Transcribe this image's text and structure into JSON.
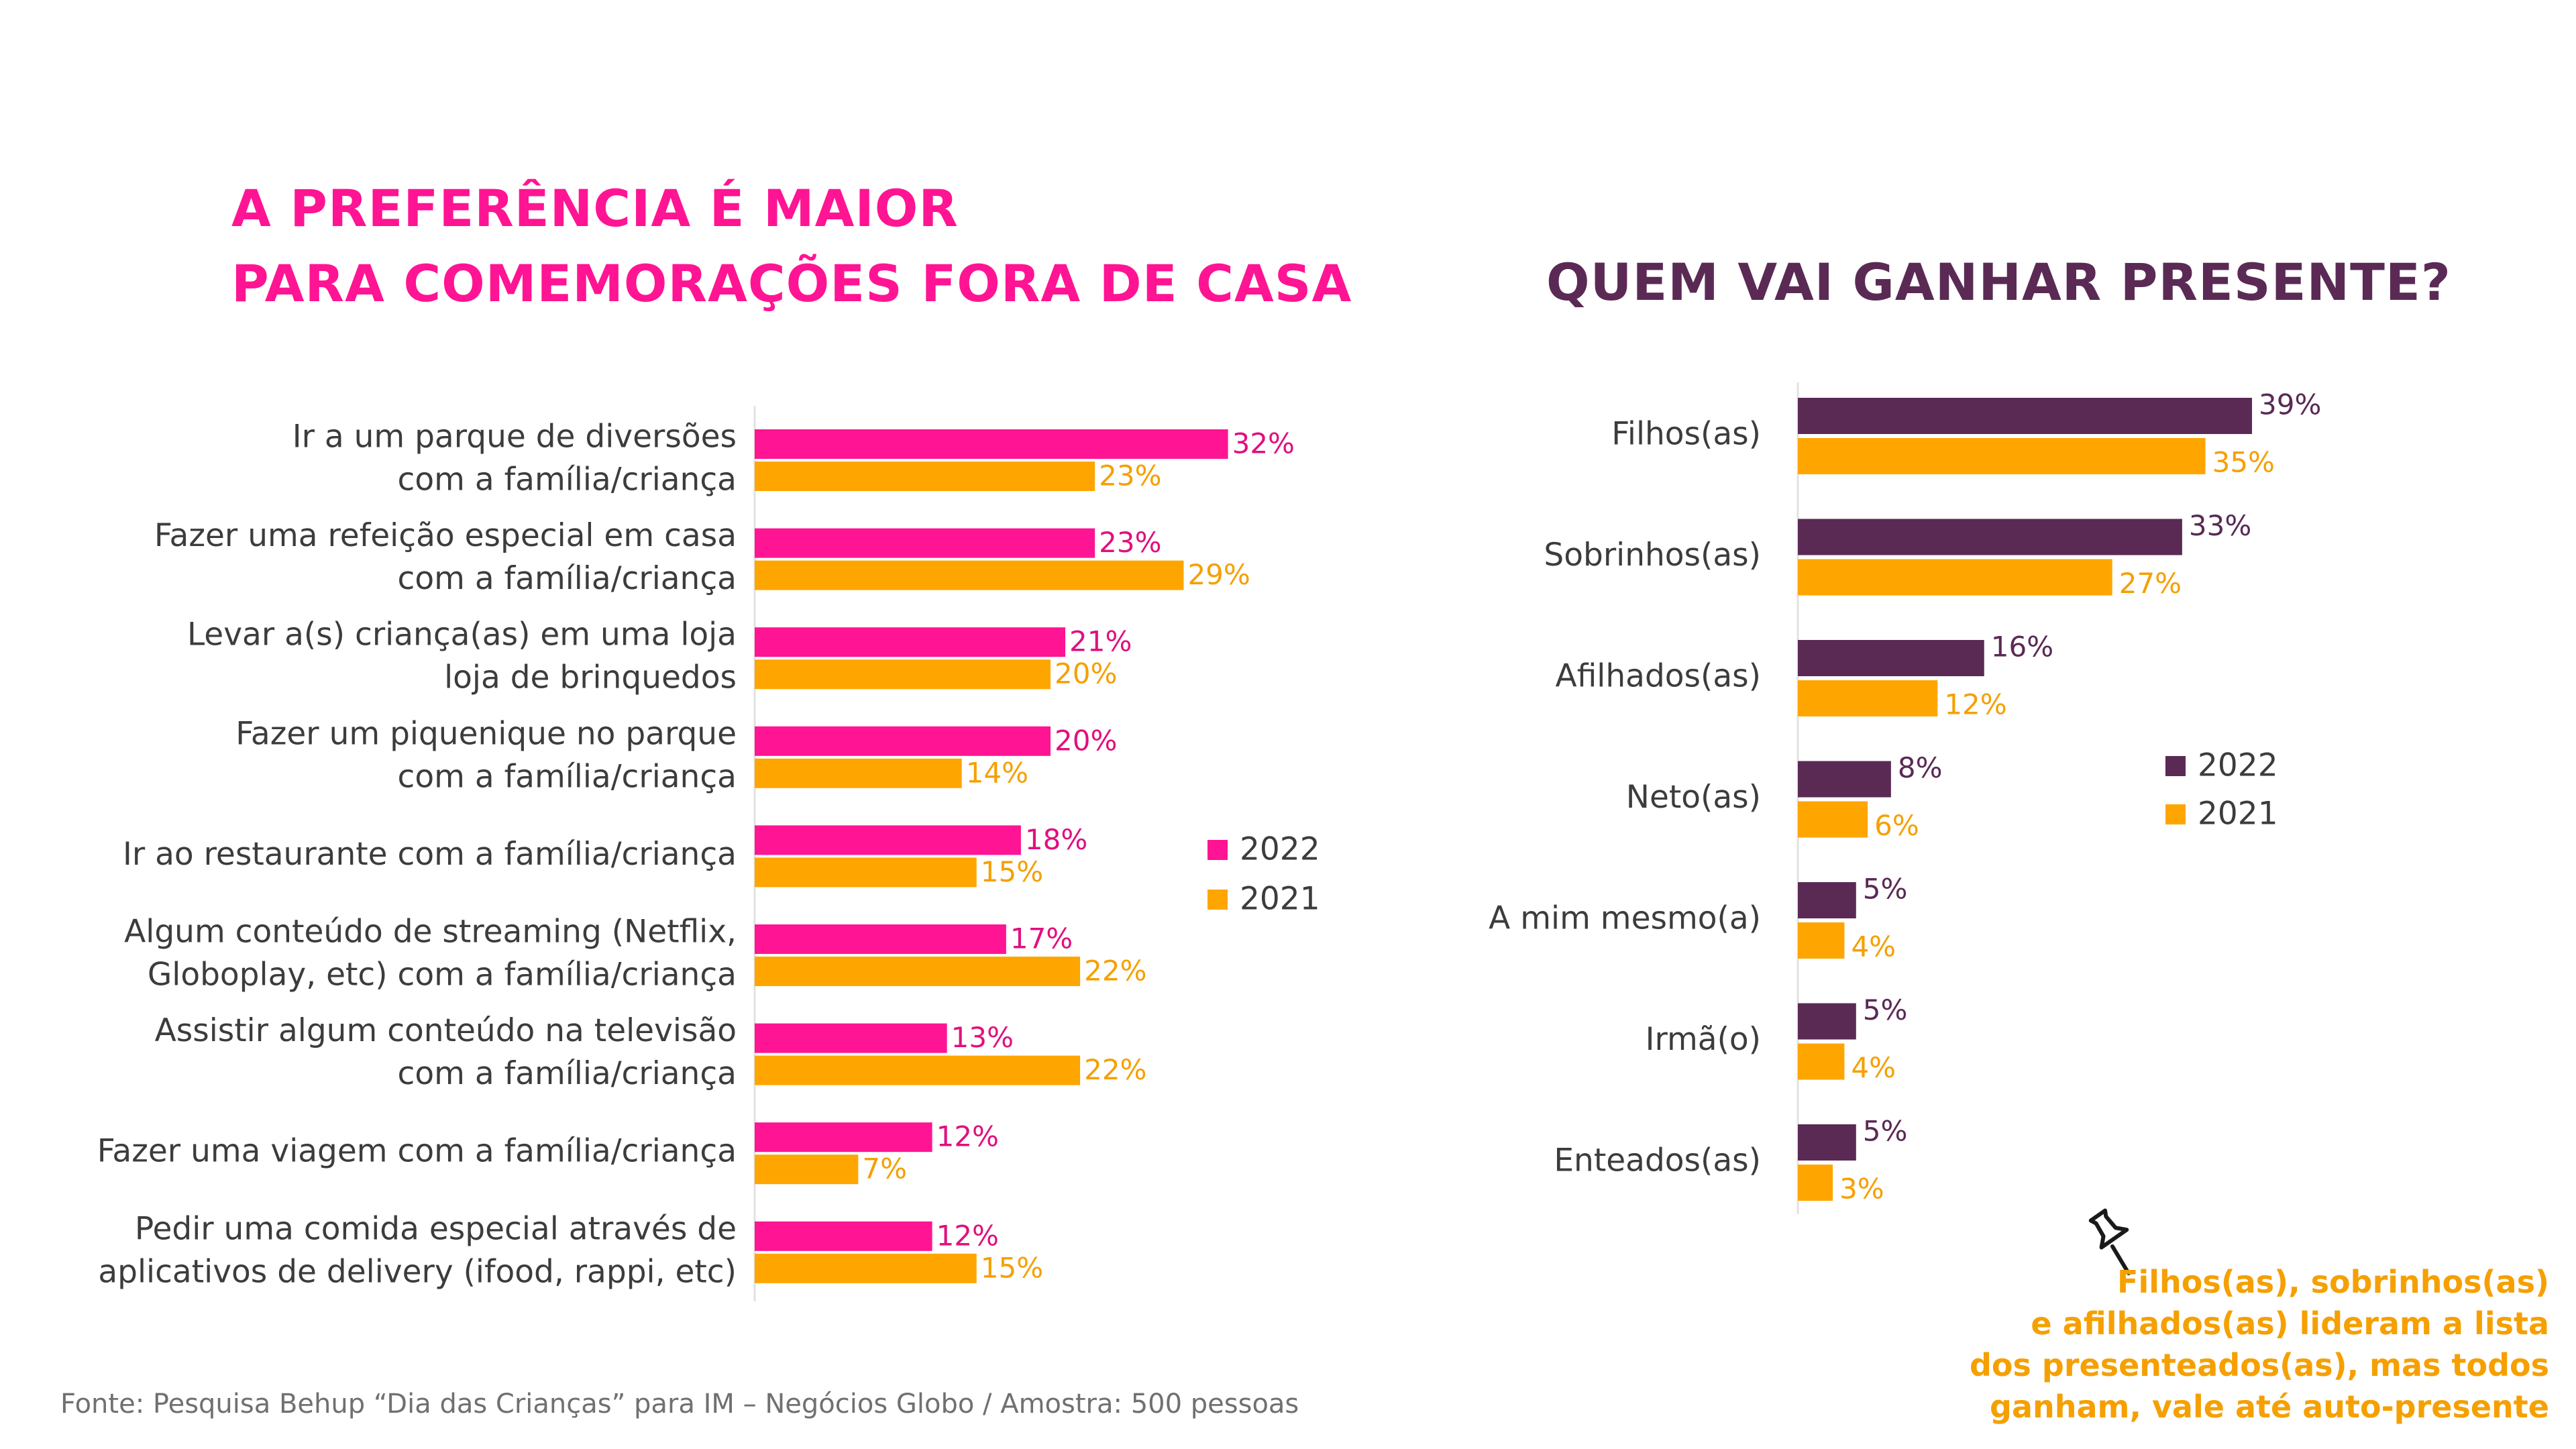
{
  "left_title": [
    "A PREFERÊNCIA É MAIOR",
    "PARA COMEMORAÇÕES FORA DE CASA"
  ],
  "right_title": "QUEM VAI GANHAR PRESENTE?",
  "source": "Fonte: Pesquisa Behup “Dia das Crianças” para  IM – Negócios Globo / Amostra: 500 pessoas",
  "note": [
    "Filhos(as), sobrinhos(as)",
    "e afilhados(as) lideram a lista",
    "dos presenteados(as), mas todos",
    "ganham, vale até auto-presente"
  ],
  "colors": {
    "left_2022": "#ff1493",
    "right_2022": "#5a2a55",
    "year_2021": "#ffa500",
    "left_label_2022": "#e0107f",
    "left_label_2021": "#f5a000",
    "right_label_2022": "#5a2a55",
    "right_label_2021": "#f5a000"
  },
  "icons": {
    "note_icon": "pushpin-icon"
  },
  "chart_data": [
    {
      "type": "bar",
      "orientation": "horizontal",
      "categories": [
        [
          "Ir a um parque de diversões",
          "com a família/criança"
        ],
        [
          "Fazer uma refeição especial em casa",
          "com a família/criança"
        ],
        [
          "Levar a(s) criança(as) em uma loja",
          "loja de brinquedos"
        ],
        [
          "Fazer um piquenique no parque",
          "com a família/criança"
        ],
        [
          "Ir ao restaurante com a família/criança"
        ],
        [
          "Algum conteúdo de streaming (Netflix,",
          "Globoplay, etc) com a família/criança"
        ],
        [
          "Assistir algum conteúdo na televisão",
          "com a família/criança"
        ],
        [
          "Fazer uma viagem com a família/criança"
        ],
        [
          "Pedir uma comida especial através de",
          "aplicativos de delivery (ifood, rappi, etc)"
        ]
      ],
      "series": [
        {
          "name": "2022",
          "values": [
            32,
            23,
            21,
            20,
            18,
            17,
            13,
            12,
            12
          ],
          "labels": [
            "32%",
            "23%",
            "21%",
            "20%",
            "18%",
            "17%",
            "13%",
            "12%",
            "12%"
          ]
        },
        {
          "name": "2021",
          "values": [
            23,
            29,
            20,
            14,
            15,
            22,
            22,
            7,
            15
          ],
          "labels": [
            "23%",
            "29%",
            "20%",
            "14%",
            "15%",
            "22%",
            "22%",
            "7%",
            "15%"
          ]
        }
      ],
      "unit": "%",
      "legend": "right",
      "grid": false
    },
    {
      "type": "bar",
      "orientation": "horizontal",
      "categories": [
        "Filhos(as)",
        "Sobrinhos(as)",
        "Afilhados(as)",
        "Neto(as)",
        "A mim mesmo(a)",
        "Irmã(o)",
        "Enteados(as)"
      ],
      "series": [
        {
          "name": "2022",
          "values": [
            39,
            33,
            16,
            8,
            5,
            5,
            5
          ],
          "labels": [
            "39%",
            "33%",
            "16%",
            "8%",
            "5%",
            "5%",
            "5%"
          ]
        },
        {
          "name": "2021",
          "values": [
            35,
            27,
            12,
            6,
            4,
            4,
            3
          ],
          "labels": [
            "35%",
            "27%",
            "12%",
            "6%",
            "4%",
            "4%",
            "3%"
          ]
        }
      ],
      "unit": "%",
      "legend": "right",
      "grid": false
    }
  ]
}
